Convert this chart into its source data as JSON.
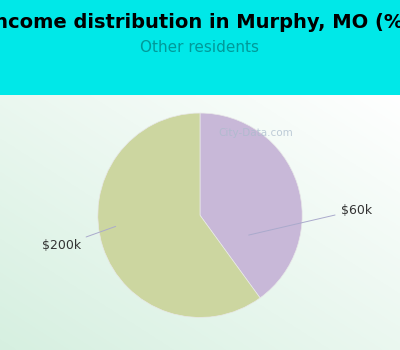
{
  "title": "Income distribution in Murphy, MO (%)",
  "subtitle": "Other residents",
  "title_color": "#000000",
  "subtitle_color": "#009999",
  "background_color": "#00e8e8",
  "chart_bg_start": "#d8f0e8",
  "chart_bg_end": "#f0f8f0",
  "slices": [
    {
      "label": "$60k",
      "value": 40,
      "color": "#c8b8d8"
    },
    {
      "label": "$200k",
      "value": 60,
      "color": "#ccd6a0"
    }
  ],
  "label_color": "#333333",
  "line_color": "#aaaacc",
  "watermark": "City-Data.com",
  "watermark_color": "#aabbcc",
  "title_fontsize": 14,
  "subtitle_fontsize": 11,
  "label_fontsize": 9,
  "start_angle": 90
}
